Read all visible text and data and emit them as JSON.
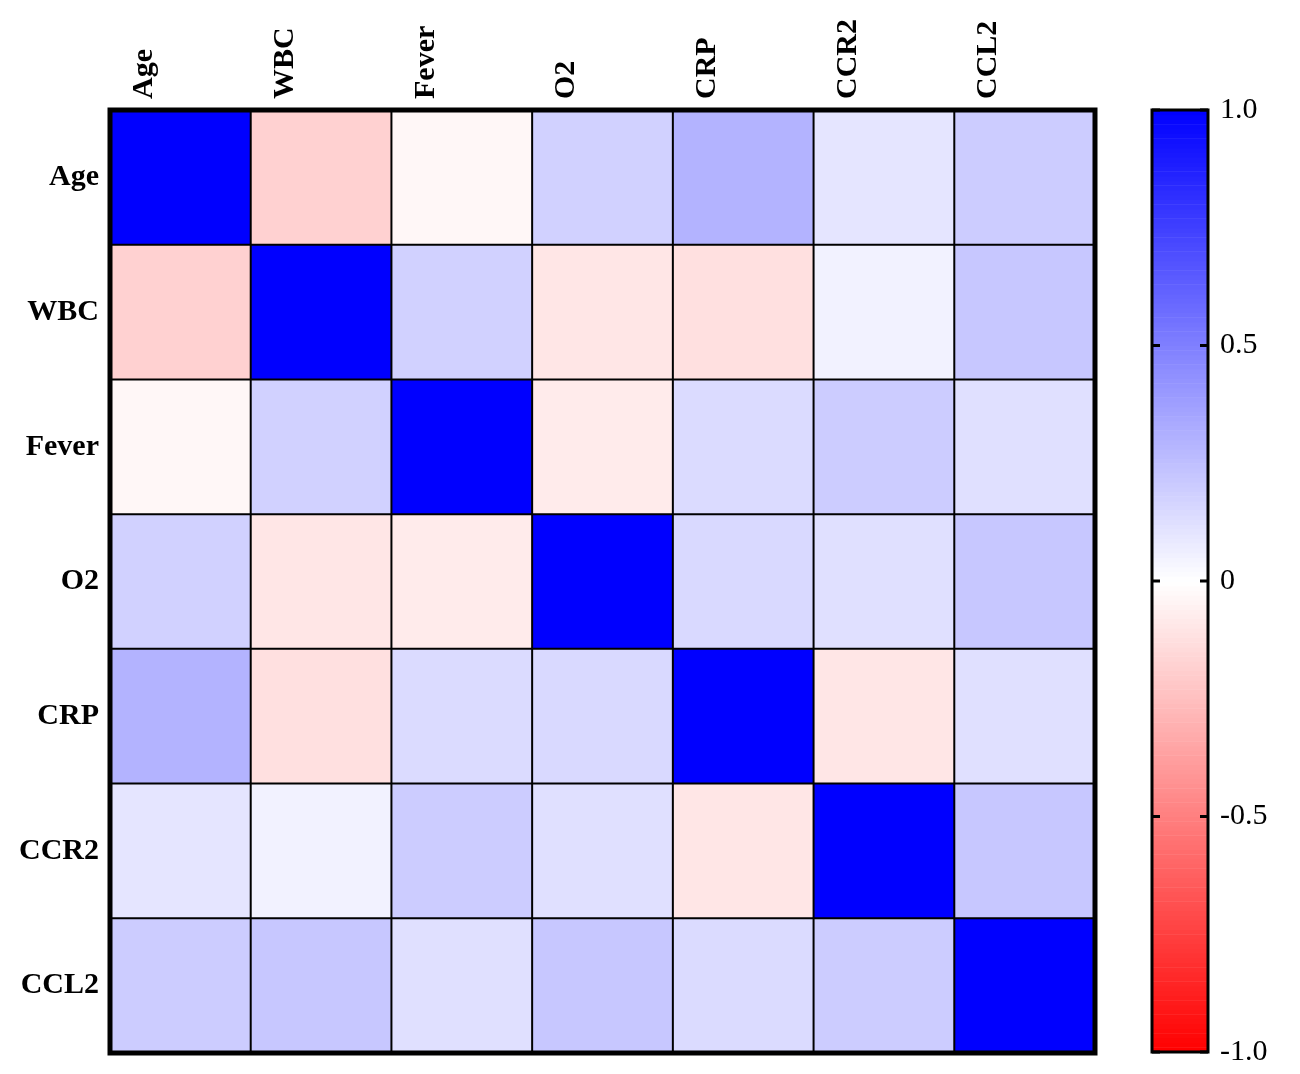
{
  "chart_data": {
    "type": "heatmap",
    "categories": [
      "Age",
      "WBC",
      "Fever",
      "O2",
      "CRP",
      "CCR2",
      "CCL2"
    ],
    "y_categories": [
      "Age",
      "WBC",
      "Fever",
      "O2",
      "CRP",
      "CCR2",
      "CCL2"
    ],
    "cells": [
      [
        1,
        -0.18,
        -0.03,
        0.18,
        0.3,
        0.1,
        0.2
      ],
      [
        -0.18,
        1,
        0.18,
        -0.1,
        -0.12,
        0.05,
        0.22
      ],
      [
        -0.03,
        0.18,
        1,
        -0.08,
        0.14,
        0.2,
        0.12
      ],
      [
        0.18,
        -0.1,
        -0.08,
        1,
        0.15,
        0.12,
        0.22
      ],
      [
        0.3,
        -0.12,
        0.14,
        0.15,
        1,
        -0.1,
        0.12
      ],
      [
        0.1,
        0.05,
        0.2,
        0.12,
        -0.1,
        1,
        0.22
      ],
      [
        0.2,
        0.22,
        0.12,
        0.22,
        0.14,
        0.2,
        1
      ]
    ],
    "clim": [
      -1,
      1
    ],
    "cticks": [
      {
        "value": -1,
        "label": "-1.0"
      },
      -0.5,
      0,
      0.5,
      {
        "value": 1,
        "label": "1.0"
      }
    ]
  }
}
